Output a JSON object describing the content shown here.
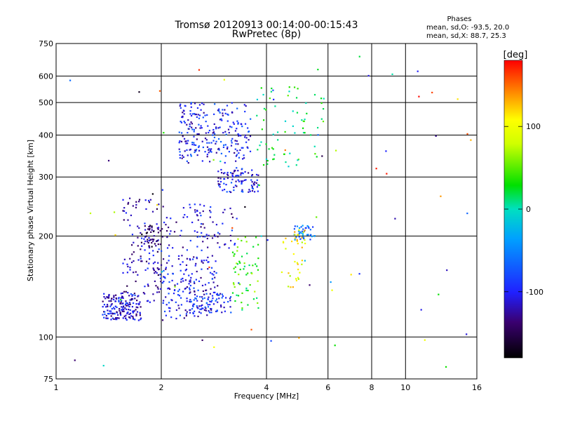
{
  "chart_data": {
    "type": "scatter",
    "title": "Tromsø 20120913 00:14:00-00:15:43",
    "subtitle": "RwPretec (8p)",
    "xlabel": "Frequency [MHz]",
    "ylabel": "Stationary phase Virtual Height [km]",
    "x_scale": "log",
    "y_scale": "log",
    "xlim": [
      1,
      16
    ],
    "ylim": [
      75,
      750
    ],
    "x_ticks": [
      1,
      2,
      4,
      6,
      8,
      10,
      16
    ],
    "y_ticks": [
      75,
      100,
      200,
      300,
      400,
      500,
      600,
      750
    ],
    "x_grid": [
      2,
      4,
      6,
      8,
      10
    ],
    "y_grid": [
      100,
      200,
      300,
      400,
      500,
      600
    ],
    "grid": true,
    "legend_block": {
      "title": "Phases",
      "lines": [
        "mean, sd,O: -93.5, 20.0",
        "mean, sd,X:  88.7, 25.3"
      ]
    },
    "colorbar": {
      "label": "[deg]",
      "range": [
        -180,
        180
      ],
      "ticks": [
        100,
        0,
        -100
      ]
    },
    "clusters": [
      {
        "x": [
          1.35,
          1.75
        ],
        "y": [
          112,
          135
        ],
        "phase": -110,
        "n": 170
      },
      {
        "x": [
          1.55,
          2.0
        ],
        "y": [
          125,
          260
        ],
        "phase": -120,
        "n": 130
      },
      {
        "x": [
          1.7,
          2.0
        ],
        "y": [
          185,
          215
        ],
        "phase": -140,
        "n": 40
      },
      {
        "x": [
          2.0,
          2.9
        ],
        "y": [
          112,
          175
        ],
        "phase": -105,
        "n": 170
      },
      {
        "x": [
          2.4,
          3.2
        ],
        "y": [
          118,
          135
        ],
        "phase": -95,
        "n": 70
      },
      {
        "x": [
          2.0,
          3.3
        ],
        "y": [
          180,
          250
        ],
        "phase": -110,
        "n": 90
      },
      {
        "x": [
          2.25,
          3.6
        ],
        "y": [
          330,
          500
        ],
        "phase": -100,
        "n": 240
      },
      {
        "x": [
          2.9,
          3.8
        ],
        "y": [
          270,
          320
        ],
        "phase": -105,
        "n": 90
      },
      {
        "x": [
          3.2,
          3.8
        ],
        "y": [
          120,
          200
        ],
        "phase": 40,
        "n": 60
      },
      {
        "x": [
          3.7,
          5.9
        ],
        "y": [
          320,
          560
        ],
        "phase": 20,
        "n": 70
      },
      {
        "x": [
          4.4,
          5.1
        ],
        "y": [
          140,
          200
        ],
        "phase": 100,
        "n": 25
      },
      {
        "x": [
          4.8,
          5.5
        ],
        "y": [
          195,
          215
        ],
        "phase": -60,
        "n": 40
      },
      {
        "x": [
          4.7,
          5.2
        ],
        "y": [
          190,
          210
        ],
        "phase": 110,
        "n": 14
      },
      {
        "x": [
          1.05,
          16
        ],
        "y": [
          80,
          700
        ],
        "phase": "mixed",
        "n": 70
      }
    ]
  }
}
